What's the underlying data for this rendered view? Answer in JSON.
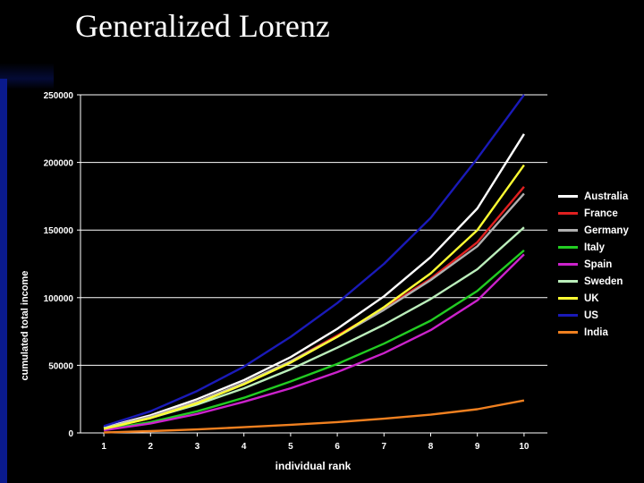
{
  "title": "Generalized Lorenz",
  "chart_data": {
    "type": "line",
    "xlabel": "individual rank",
    "ylabel": "cumulated total income",
    "x": [
      1,
      2,
      3,
      4,
      5,
      6,
      7,
      8,
      9,
      10
    ],
    "xlim": [
      0.5,
      10.5
    ],
    "ylim": [
      0,
      250000
    ],
    "y_ticks": [
      0,
      50000,
      100000,
      150000,
      200000,
      250000
    ],
    "grid": "horizontal",
    "legend_position": "right",
    "series": [
      {
        "name": "Australia",
        "color": "#ffffff",
        "values": [
          4000,
          13000,
          25000,
          39000,
          56000,
          77000,
          101000,
          130000,
          166000,
          221000
        ]
      },
      {
        "name": "France",
        "color": "#e02020",
        "values": [
          3500,
          12000,
          23000,
          37000,
          53000,
          72000,
          92000,
          114000,
          141000,
          182000
        ]
      },
      {
        "name": "Germany",
        "color": "#b0b0b0",
        "values": [
          3500,
          12000,
          23000,
          37000,
          53000,
          71000,
          91000,
          113000,
          138000,
          177000
        ]
      },
      {
        "name": "Italy",
        "color": "#22cc22",
        "values": [
          2500,
          8000,
          16000,
          26000,
          38000,
          51000,
          66000,
          83000,
          105000,
          135000
        ]
      },
      {
        "name": "Spain",
        "color": "#cc22cc",
        "values": [
          2000,
          7000,
          14000,
          23000,
          33000,
          45000,
          59000,
          76000,
          98000,
          132000
        ]
      },
      {
        "name": "Sweden",
        "color": "#bbeebb",
        "values": [
          3500,
          11000,
          21000,
          33000,
          47000,
          63000,
          80000,
          99000,
          121000,
          152000
        ]
      },
      {
        "name": "UK",
        "color": "#ffff33",
        "values": [
          3000,
          11000,
          22000,
          36000,
          52000,
          71000,
          93000,
          118000,
          150000,
          198000
        ]
      },
      {
        "name": "US",
        "color": "#1a1ab8",
        "values": [
          5000,
          16000,
          31000,
          49000,
          71000,
          96000,
          125000,
          159000,
          203000,
          250000
        ]
      },
      {
        "name": "India",
        "color": "#f08020",
        "values": [
          300,
          1300,
          2600,
          4200,
          6000,
          8000,
          10500,
          13500,
          17500,
          24000
        ]
      }
    ]
  }
}
